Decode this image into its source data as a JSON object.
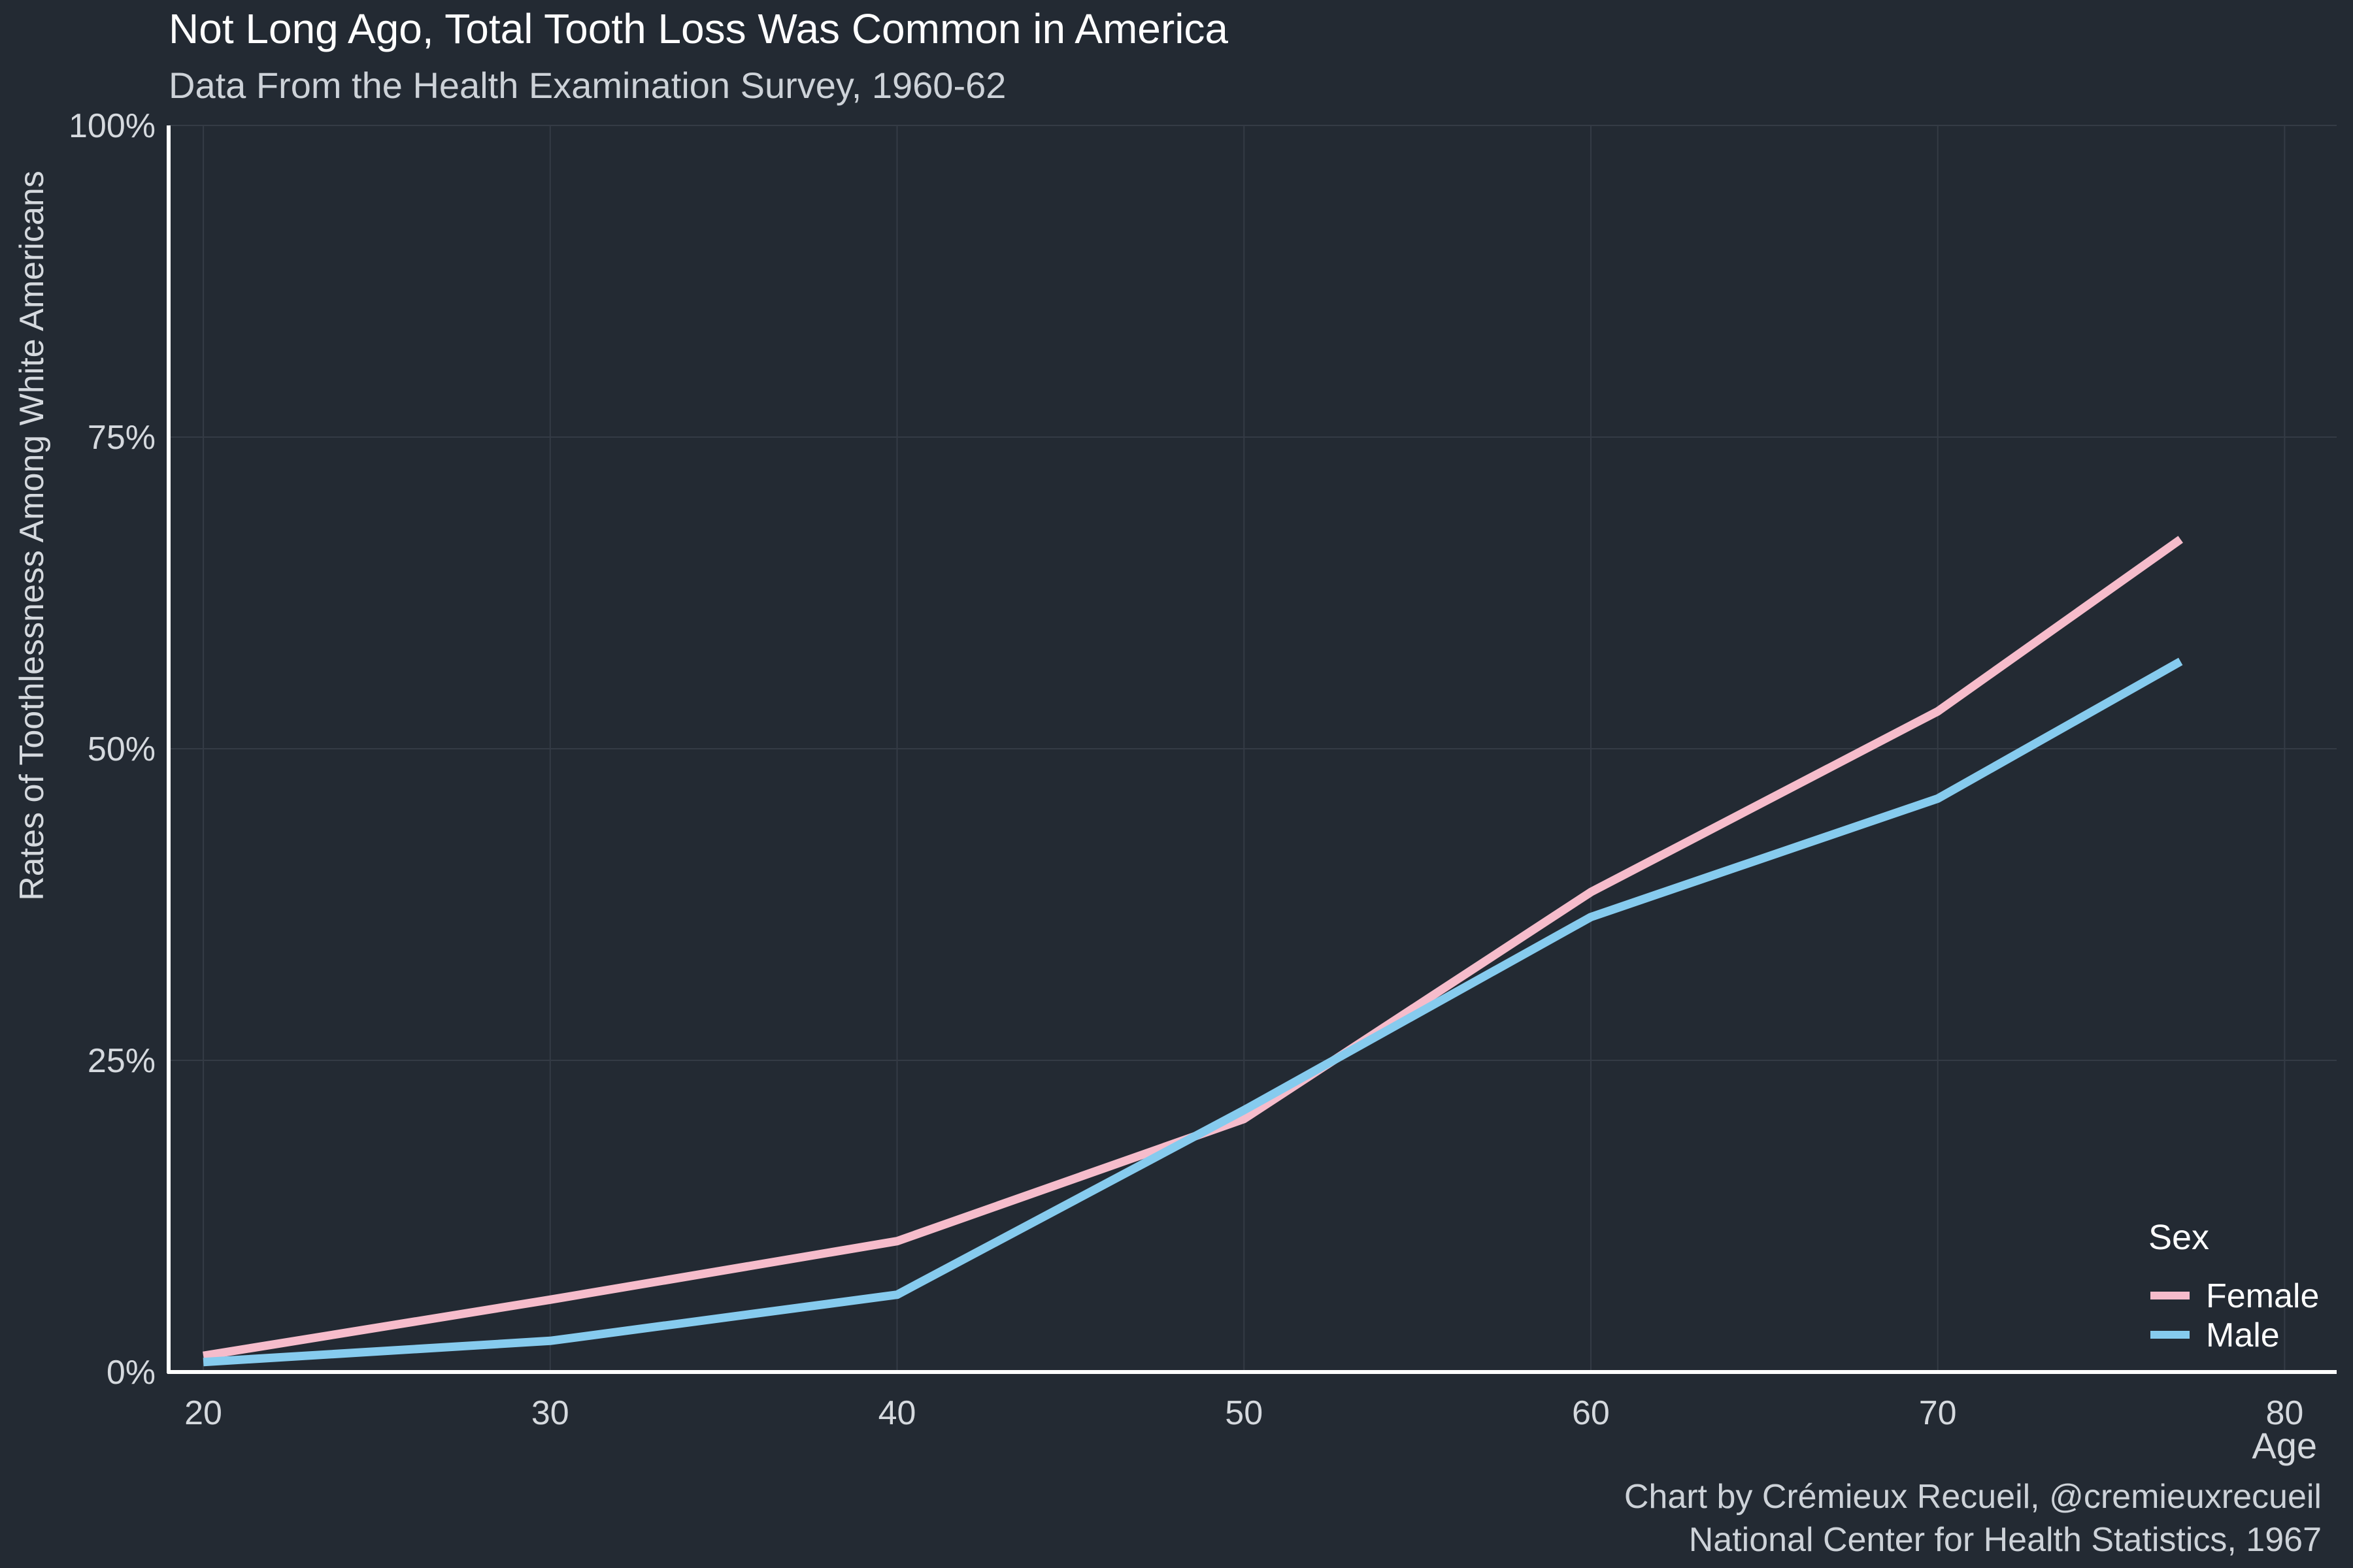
{
  "chart_data": {
    "type": "line",
    "title": "Not Long Ago, Total Tooth Loss Was Common in America",
    "subtitle": "Data From the Health Examination Survey, 1960-62",
    "xlabel": "Age",
    "ylabel": "Rates of Toothlessness Among White Americans",
    "xlim": [
      19,
      81.5
    ],
    "ylim": [
      0,
      100
    ],
    "x_ticks": [
      20,
      30,
      40,
      50,
      60,
      70,
      80
    ],
    "x_tick_labels": [
      "20",
      "30",
      "40",
      "50",
      "60",
      "70",
      "80"
    ],
    "y_ticks": [
      0,
      25,
      50,
      75,
      100
    ],
    "y_tick_labels": [
      "0%",
      "25%",
      "50%",
      "75%",
      "100%"
    ],
    "grid": true,
    "legend": {
      "title": "Sex",
      "position": "bottom-right"
    },
    "series": [
      {
        "name": "Female",
        "color": "#f6bccb",
        "x": [
          20,
          30,
          40,
          50,
          60,
          70,
          77
        ],
        "y": [
          1.3,
          5.8,
          10.5,
          20.3,
          38.5,
          53.0,
          66.8
        ]
      },
      {
        "name": "Male",
        "color": "#86cbee",
        "x": [
          20,
          30,
          40,
          50,
          60,
          70,
          77
        ],
        "y": [
          0.8,
          2.5,
          6.2,
          21.0,
          36.5,
          46.0,
          57.0
        ]
      }
    ],
    "caption": [
      "Chart by Crémieux Recueil, @cremieuxrecueil",
      "National Center for Health Statistics, 1967"
    ]
  },
  "colors": {
    "background": "#232a33",
    "grid": "#343b45",
    "axis": "#ffffff",
    "title": "#ffffff",
    "subtitle": "#cdd2d8",
    "tick_label": "#d5d9de",
    "axis_title": "#d5d9de",
    "caption": "#cdd2d8"
  }
}
